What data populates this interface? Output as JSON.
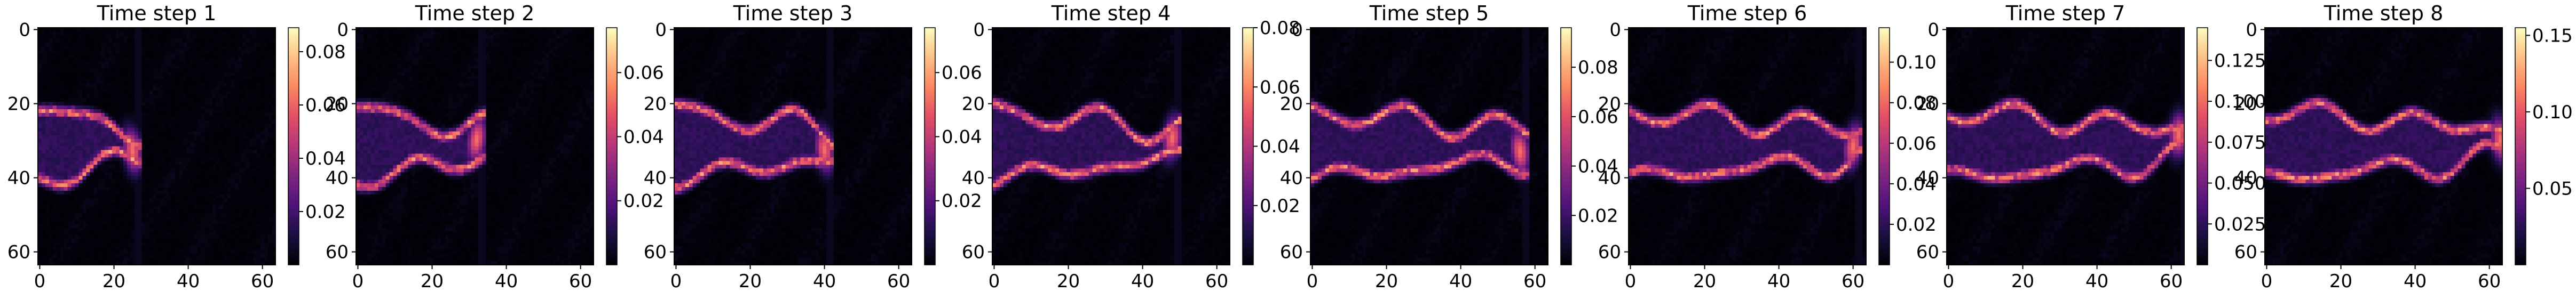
{
  "chart_data": [
    {
      "type": "heatmap",
      "title": "Time step 1",
      "x_ticks": [
        0,
        20,
        40,
        60
      ],
      "y_ticks": [
        0,
        20,
        40,
        60
      ],
      "grid_size": 64,
      "colormap": "magma",
      "colorbar": {
        "min": 0.0,
        "max": 0.089,
        "ticks": [
          "0.02",
          "0.04",
          "0.06",
          "0.08"
        ],
        "tick_values": [
          0.02,
          0.04,
          0.06,
          0.08
        ]
      },
      "front_x": 25,
      "peak": 0.085
    },
    {
      "type": "heatmap",
      "title": "Time step 2",
      "x_ticks": [
        0,
        20,
        40,
        60
      ],
      "y_ticks": [
        0,
        20,
        40,
        60
      ],
      "grid_size": 64,
      "colormap": "magma",
      "colorbar": {
        "min": 0.0,
        "max": 0.074,
        "ticks": [
          "0.02",
          "0.04",
          "0.06"
        ],
        "tick_values": [
          0.02,
          0.04,
          0.06
        ]
      },
      "front_x": 32,
      "peak": 0.072
    },
    {
      "type": "heatmap",
      "title": "Time step 3",
      "x_ticks": [
        0,
        20,
        40,
        60
      ],
      "y_ticks": [
        0,
        20,
        40,
        60
      ],
      "grid_size": 64,
      "colormap": "magma",
      "colorbar": {
        "min": 0.0,
        "max": 0.074,
        "ticks": [
          "0.02",
          "0.04",
          "0.06"
        ],
        "tick_values": [
          0.02,
          0.04,
          0.06
        ]
      },
      "front_x": 40,
      "peak": 0.072
    },
    {
      "type": "heatmap",
      "title": "Time step 4",
      "x_ticks": [
        0,
        20,
        40,
        60
      ],
      "y_ticks": [
        0,
        20,
        40,
        60
      ],
      "grid_size": 64,
      "colormap": "magma",
      "colorbar": {
        "min": 0.0,
        "max": 0.08,
        "ticks": [
          "0.02",
          "0.04",
          "0.06",
          "0.08"
        ],
        "tick_values": [
          0.02,
          0.04,
          0.06,
          0.08
        ]
      },
      "front_x": 48,
      "peak": 0.08
    },
    {
      "type": "heatmap",
      "title": "Time step 5",
      "x_ticks": [
        0,
        20,
        40,
        60
      ],
      "y_ticks": [
        0,
        20,
        40,
        60
      ],
      "grid_size": 64,
      "colormap": "magma",
      "colorbar": {
        "min": 0.0,
        "max": 0.096,
        "ticks": [
          "0.02",
          "0.04",
          "0.06",
          "0.08"
        ],
        "tick_values": [
          0.02,
          0.04,
          0.06,
          0.08
        ]
      },
      "front_x": 56,
      "peak": 0.095
    },
    {
      "type": "heatmap",
      "title": "Time step 6",
      "x_ticks": [
        0,
        20,
        40,
        60
      ],
      "y_ticks": [
        0,
        20,
        40,
        60
      ],
      "grid_size": 64,
      "colormap": "magma",
      "colorbar": {
        "min": 0.0,
        "max": 0.117,
        "ticks": [
          "0.02",
          "0.04",
          "0.06",
          "0.08",
          "0.10"
        ],
        "tick_values": [
          0.02,
          0.04,
          0.06,
          0.08,
          0.1
        ]
      },
      "front_x": 60,
      "peak": 0.115
    },
    {
      "type": "heatmap",
      "title": "Time step 7",
      "x_ticks": [
        0,
        20,
        40,
        60
      ],
      "y_ticks": [
        0,
        20,
        40,
        60
      ],
      "grid_size": 64,
      "colormap": "magma",
      "colorbar": {
        "min": 0.0,
        "max": 0.145,
        "ticks": [
          "0.025",
          "0.050",
          "0.075",
          "0.100",
          "0.125"
        ],
        "tick_values": [
          0.025,
          0.05,
          0.075,
          0.1,
          0.125
        ]
      },
      "front_x": 62,
      "peak": 0.14
    },
    {
      "type": "heatmap",
      "title": "Time step 8",
      "x_ticks": [
        0,
        20,
        40,
        60
      ],
      "y_ticks": [
        0,
        20,
        40,
        60
      ],
      "grid_size": 64,
      "colormap": "magma",
      "colorbar": {
        "min": 0.0,
        "max": 0.155,
        "ticks": [
          "0.05",
          "0.10",
          "0.15"
        ],
        "tick_values": [
          0.05,
          0.1,
          0.15
        ]
      },
      "front_x": 63,
      "peak": 0.15
    }
  ]
}
